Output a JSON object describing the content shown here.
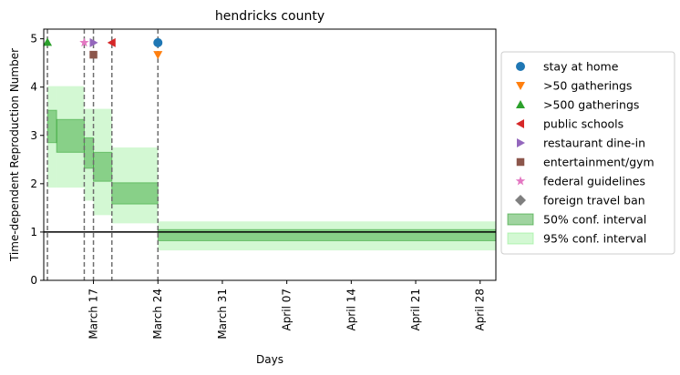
{
  "chart_data": {
    "type": "step-interval",
    "title": "hendricks county",
    "xlabel": "Days",
    "ylabel": "Time-dependent Reproduction Number",
    "x_range": [
      "2020-03-12",
      "2020-04-01"
    ],
    "ylim": [
      0,
      5.2
    ],
    "y_ticks": [
      0,
      1,
      2,
      3,
      4,
      5
    ],
    "x_ticks": [
      {
        "date": "2020-03-17",
        "label": "March 17"
      },
      {
        "date": "2020-03-24",
        "label": "March 24"
      },
      {
        "date": "2020-03-31",
        "label": "March 31"
      },
      {
        "date": "2020-04-07",
        "label": "April 07"
      },
      {
        "date": "2020-04-14",
        "label": "April 14"
      },
      {
        "date": "2020-04-21",
        "label": "April 21"
      },
      {
        "date": "2020-04-28",
        "label": "April 28"
      }
    ],
    "reference_line": 1,
    "segments": [
      {
        "start": "2020-03-12",
        "end": "2020-03-13",
        "ci50": [
          2.85,
          3.52
        ],
        "ci95": [
          1.92,
          4.02
        ]
      },
      {
        "start": "2020-03-13",
        "end": "2020-03-16",
        "ci50": [
          2.65,
          3.33
        ],
        "ci95": [
          1.92,
          4.02
        ]
      },
      {
        "start": "2020-03-16",
        "end": "2020-03-17",
        "ci50": [
          2.32,
          2.95
        ],
        "ci95": [
          1.65,
          3.55
        ]
      },
      {
        "start": "2020-03-17",
        "end": "2020-03-19",
        "ci50": [
          2.05,
          2.65
        ],
        "ci95": [
          1.35,
          3.55
        ]
      },
      {
        "start": "2020-03-19",
        "end": "2020-03-24",
        "ci50": [
          1.58,
          2.02
        ],
        "ci95": [
          1.18,
          2.75
        ]
      },
      {
        "start": "2020-03-24",
        "end": "2020-05-02",
        "ci50": [
          0.82,
          1.05
        ],
        "ci95": [
          0.62,
          1.22
        ]
      }
    ],
    "events": [
      {
        "name": "stay at home",
        "date": "2020-03-24",
        "y": 4.92,
        "marker": "circle",
        "color": "#1f77b4"
      },
      {
        "name": ">50 gatherings",
        "date": "2020-03-24",
        "y": 4.67,
        "marker": "triangle-down",
        "color": "#ff7f0e"
      },
      {
        "name": ">500 gatherings",
        "date": "2020-03-12",
        "y": 4.93,
        "marker": "triangle-up",
        "color": "#2ca02c"
      },
      {
        "name": "public schools",
        "date": "2020-03-19",
        "y": 4.92,
        "marker": "triangle-left",
        "color": "#d62728"
      },
      {
        "name": "restaurant dine-in",
        "date": "2020-03-17",
        "y": 4.92,
        "marker": "triangle-right",
        "color": "#9467bd"
      },
      {
        "name": "entertainment/gym",
        "date": "2020-03-17",
        "y": 4.67,
        "marker": "square",
        "color": "#8c564b"
      },
      {
        "name": "federal guidelines",
        "date": "2020-03-16",
        "y": 4.92,
        "marker": "star",
        "color": "#e377c2"
      },
      {
        "name": "foreign travel ban",
        "date": null,
        "y": null,
        "marker": "diamond",
        "color": "#7f7f7f"
      }
    ],
    "vertical_lines": [
      "2020-03-12",
      "2020-03-16",
      "2020-03-17",
      "2020-03-19",
      "2020-03-24"
    ],
    "interval_legend": [
      {
        "name": "50% conf. interval",
        "color": "#2ca02c",
        "opacity": 0.45
      },
      {
        "name": "95% conf. interval",
        "color": "#90ee90",
        "opacity": 0.4
      }
    ],
    "legend_position": "right"
  }
}
